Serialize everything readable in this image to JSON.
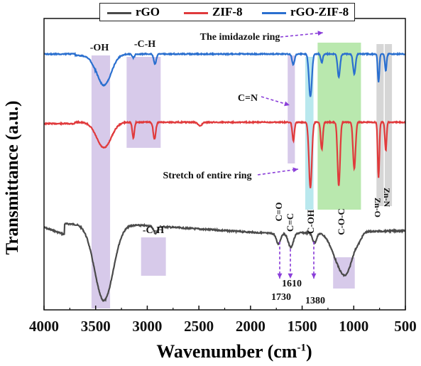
{
  "chart_data": {
    "type": "line",
    "xlabel": "Wavenumber (cm",
    "xlabel_sup": "-1",
    "xlabel_end": ")",
    "ylabel": "Transmittance (a.u.)",
    "xlim": [
      4000,
      500
    ],
    "x_ticks": [
      "4000",
      "3500",
      "3000",
      "2500",
      "2000",
      "1500",
      "1000",
      "500"
    ],
    "legend_placement": "top",
    "series": [
      {
        "name": "rGO",
        "color": "#4a4a4a"
      },
      {
        "name": "ZIF-8",
        "color": "#e03a3c"
      },
      {
        "name": "rGO-ZIF-8",
        "color": "#2a6fcf"
      }
    ],
    "annotations": {
      "oh": "-OH",
      "ch_top": "-C-H",
      "ch_bottom": "-C-H",
      "imidazole": "The imidazole ring",
      "cn": "C=N",
      "stretch": "Stretch of entire ring",
      "co": "C=O",
      "cc": "C=C",
      "coh": "C-OH",
      "coc": "C-O-C",
      "zno": "Zn-O",
      "znn": "Zn-N",
      "w1730": "1730",
      "w1610": "1610",
      "w1380": "1380"
    },
    "colors": {
      "purple_band": "#b79fd9",
      "green_band": "#7fd66b",
      "gray_band": "#b5b5b5",
      "cyan_band": "#7fd6e0",
      "arrow": "#8b3fd9"
    }
  }
}
